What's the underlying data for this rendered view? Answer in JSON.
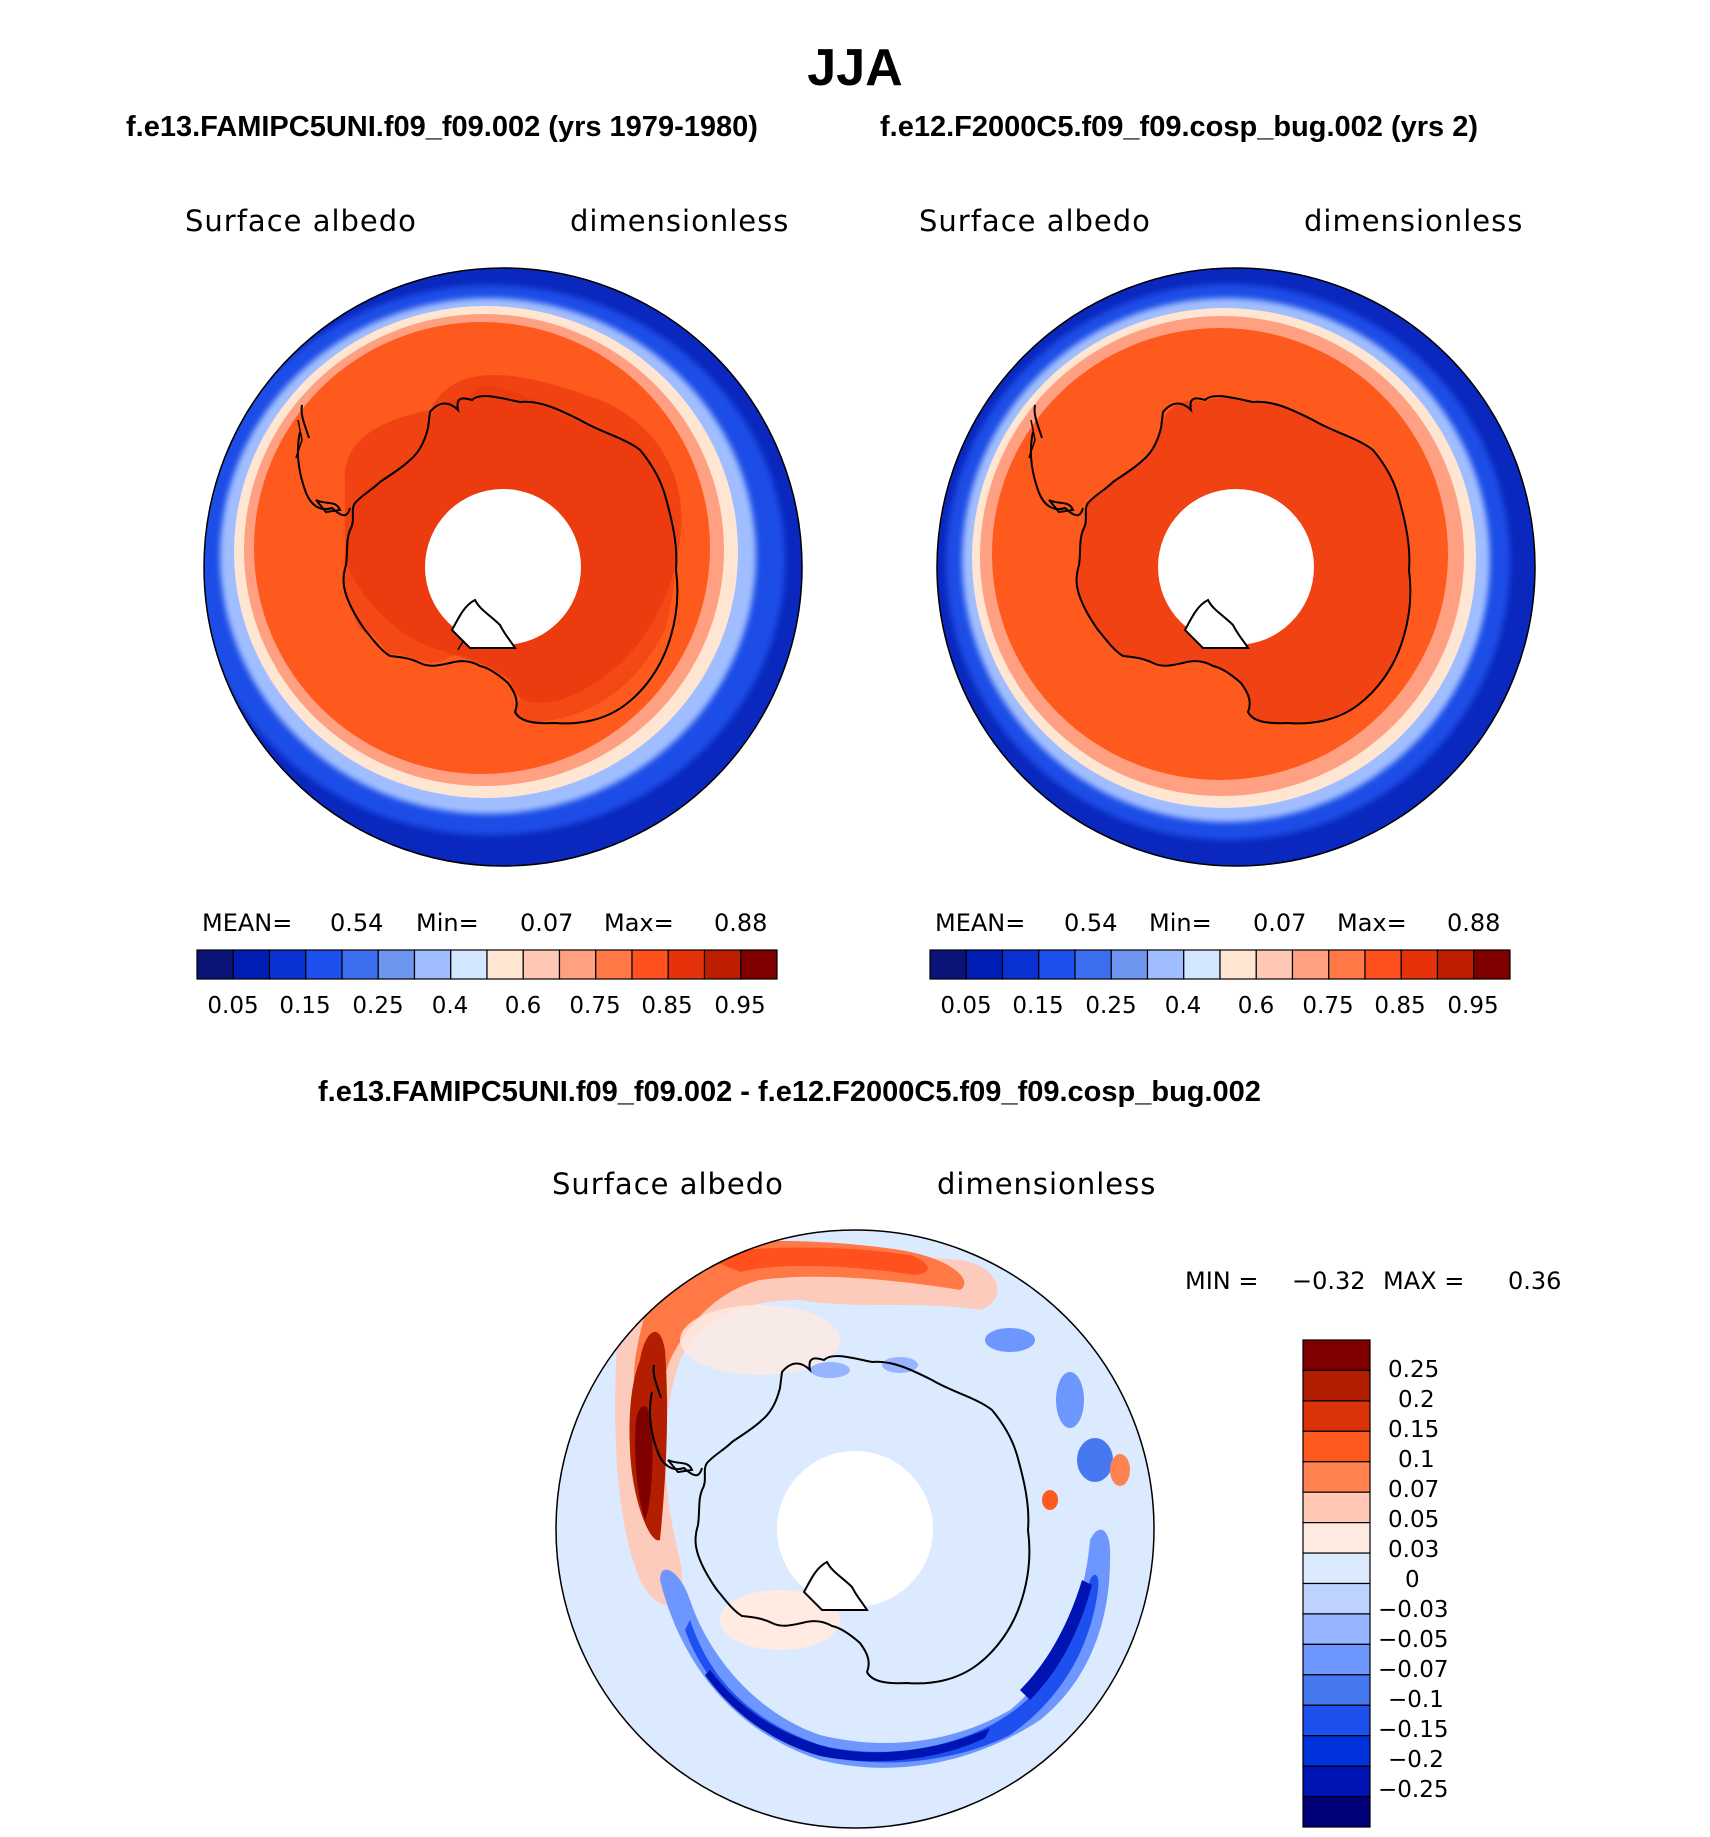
{
  "title": "JJA",
  "panel_top_left": {
    "case_title": "f.e13.FAMIPC5UNI.f09_f09.002 (yrs 1979-1980)",
    "variable": "Surface albedo",
    "units": "dimensionless",
    "mean_label": "MEAN=",
    "mean_value": "0.54",
    "min_label": "Min=",
    "min_value": "0.07",
    "max_label": "Max=",
    "max_value": "0.88"
  },
  "panel_top_right": {
    "case_title": "f.e12.F2000C5.f09_f09.cosp_bug.002 (yrs 2)",
    "variable": "Surface albedo",
    "units": "dimensionless",
    "mean_label": "MEAN=",
    "mean_value": "0.54",
    "min_label": "Min=",
    "min_value": "0.07",
    "max_label": "Max=",
    "max_value": "0.88"
  },
  "panel_diff": {
    "case_title": "f.e13.FAMIPC5UNI.f09_f09.002 - f.e12.F2000C5.f09_f09.cosp_bug.002",
    "variable": "Surface albedo",
    "units": "dimensionless",
    "min_label": "MIN =",
    "min_value": "−0.32",
    "max_label": "MAX =",
    "max_value": "0.36"
  },
  "colorbar_top": {
    "colors": [
      "#0a1478",
      "#001eb4",
      "#0a32d2",
      "#1e50f0",
      "#3c6ef0",
      "#6e96f0",
      "#a0beff",
      "#d2e6ff",
      "#ffe6d2",
      "#ffc8b4",
      "#ffa082",
      "#ff7846",
      "#ff501e",
      "#e6320a",
      "#be1e00",
      "#800000"
    ],
    "tick_labels": [
      "0.05",
      "0.15",
      "0.25",
      "0.4",
      "0.6",
      "0.75",
      "0.85",
      "0.95"
    ]
  },
  "colorbar_diff": {
    "colors": [
      "#800000",
      "#b41e00",
      "#dc320a",
      "#ff5a1e",
      "#ff8250",
      "#ffc8b4",
      "#ffebe1",
      "#dceaff",
      "#bed2ff",
      "#96b4ff",
      "#6e96ff",
      "#4678f0",
      "#1e50f0",
      "#0032dc",
      "#0014b4",
      "#000078"
    ],
    "tick_labels": [
      "0.25",
      "0.2",
      "0.15",
      "0.1",
      "0.07",
      "0.05",
      "0.03",
      "0",
      "−0.03",
      "−0.05",
      "−0.07",
      "−0.1",
      "−0.15",
      "−0.2",
      "−0.25"
    ]
  }
}
